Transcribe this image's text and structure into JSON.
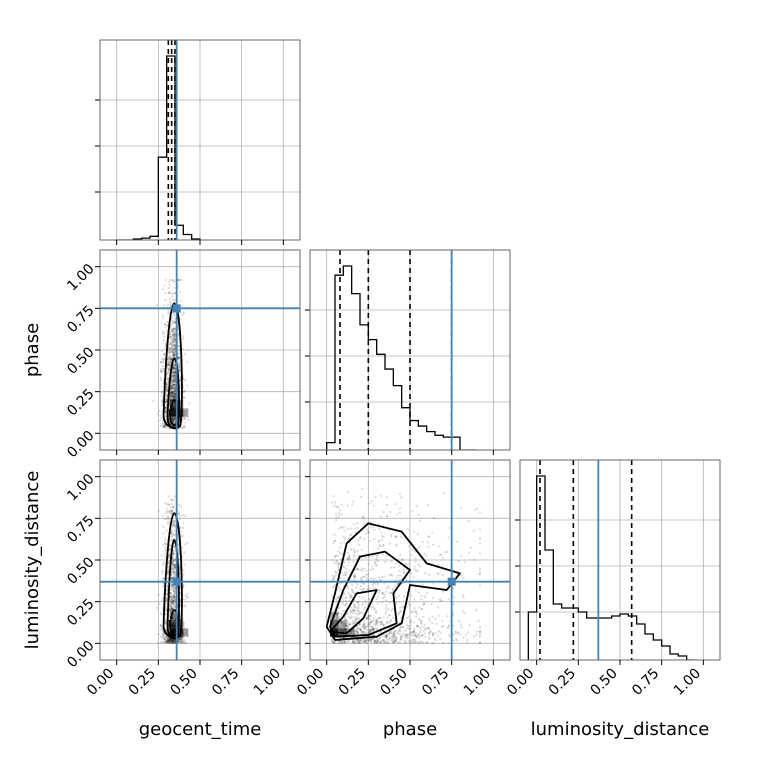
{
  "chart_data": {
    "type": "corner",
    "parameters": [
      "geocent_time",
      "phase",
      "luminosity_distance"
    ],
    "truths": [
      0.36,
      0.75,
      0.37
    ],
    "range": [
      -0.1,
      1.1
    ],
    "tick_labels": [
      "0.00",
      "0.25",
      "0.50",
      "0.75",
      "1.00"
    ],
    "grid": true,
    "colors": {
      "truth": "#4682b4",
      "hist": "#000000",
      "quantile": "#000000",
      "grid": "#b0b0b0",
      "points": "#000000"
    },
    "diagonal": [
      {
        "parameter": "geocent_time",
        "quantiles": [
          0.31,
          0.33,
          0.35
        ],
        "bin_edges": [
          0.0,
          0.05,
          0.1,
          0.15,
          0.2,
          0.25,
          0.3,
          0.35,
          0.4,
          0.45,
          0.5
        ],
        "counts": [
          0,
          0,
          0.005,
          0.01,
          0.02,
          0.45,
          1.0,
          0.08,
          0.03,
          0.005
        ]
      },
      {
        "parameter": "phase",
        "quantiles": [
          0.08,
          0.25,
          0.5,
          0.75
        ],
        "bin_edges": [
          0.0,
          0.05,
          0.1,
          0.15,
          0.2,
          0.25,
          0.3,
          0.35,
          0.4,
          0.45,
          0.5,
          0.55,
          0.6,
          0.65,
          0.7,
          0.75,
          0.8,
          0.85,
          0.9
        ],
        "counts": [
          0.04,
          0.95,
          1.0,
          0.85,
          0.68,
          0.6,
          0.52,
          0.44,
          0.35,
          0.23,
          0.16,
          0.13,
          0.1,
          0.08,
          0.07,
          0.07,
          0.0,
          0.0
        ]
      },
      {
        "parameter": "luminosity_distance",
        "quantiles": [
          0.02,
          0.22,
          0.57
        ],
        "bin_edges": [
          -0.05,
          0.0,
          0.05,
          0.1,
          0.15,
          0.2,
          0.25,
          0.3,
          0.35,
          0.4,
          0.45,
          0.5,
          0.55,
          0.6,
          0.65,
          0.7,
          0.75,
          0.8,
          0.85,
          0.9,
          0.95
        ],
        "counts": [
          0.24,
          0.92,
          0.55,
          0.28,
          0.26,
          0.26,
          0.24,
          0.21,
          0.21,
          0.21,
          0.22,
          0.23,
          0.22,
          0.18,
          0.13,
          0.1,
          0.07,
          0.03,
          0.02,
          0.0
        ]
      }
    ]
  }
}
